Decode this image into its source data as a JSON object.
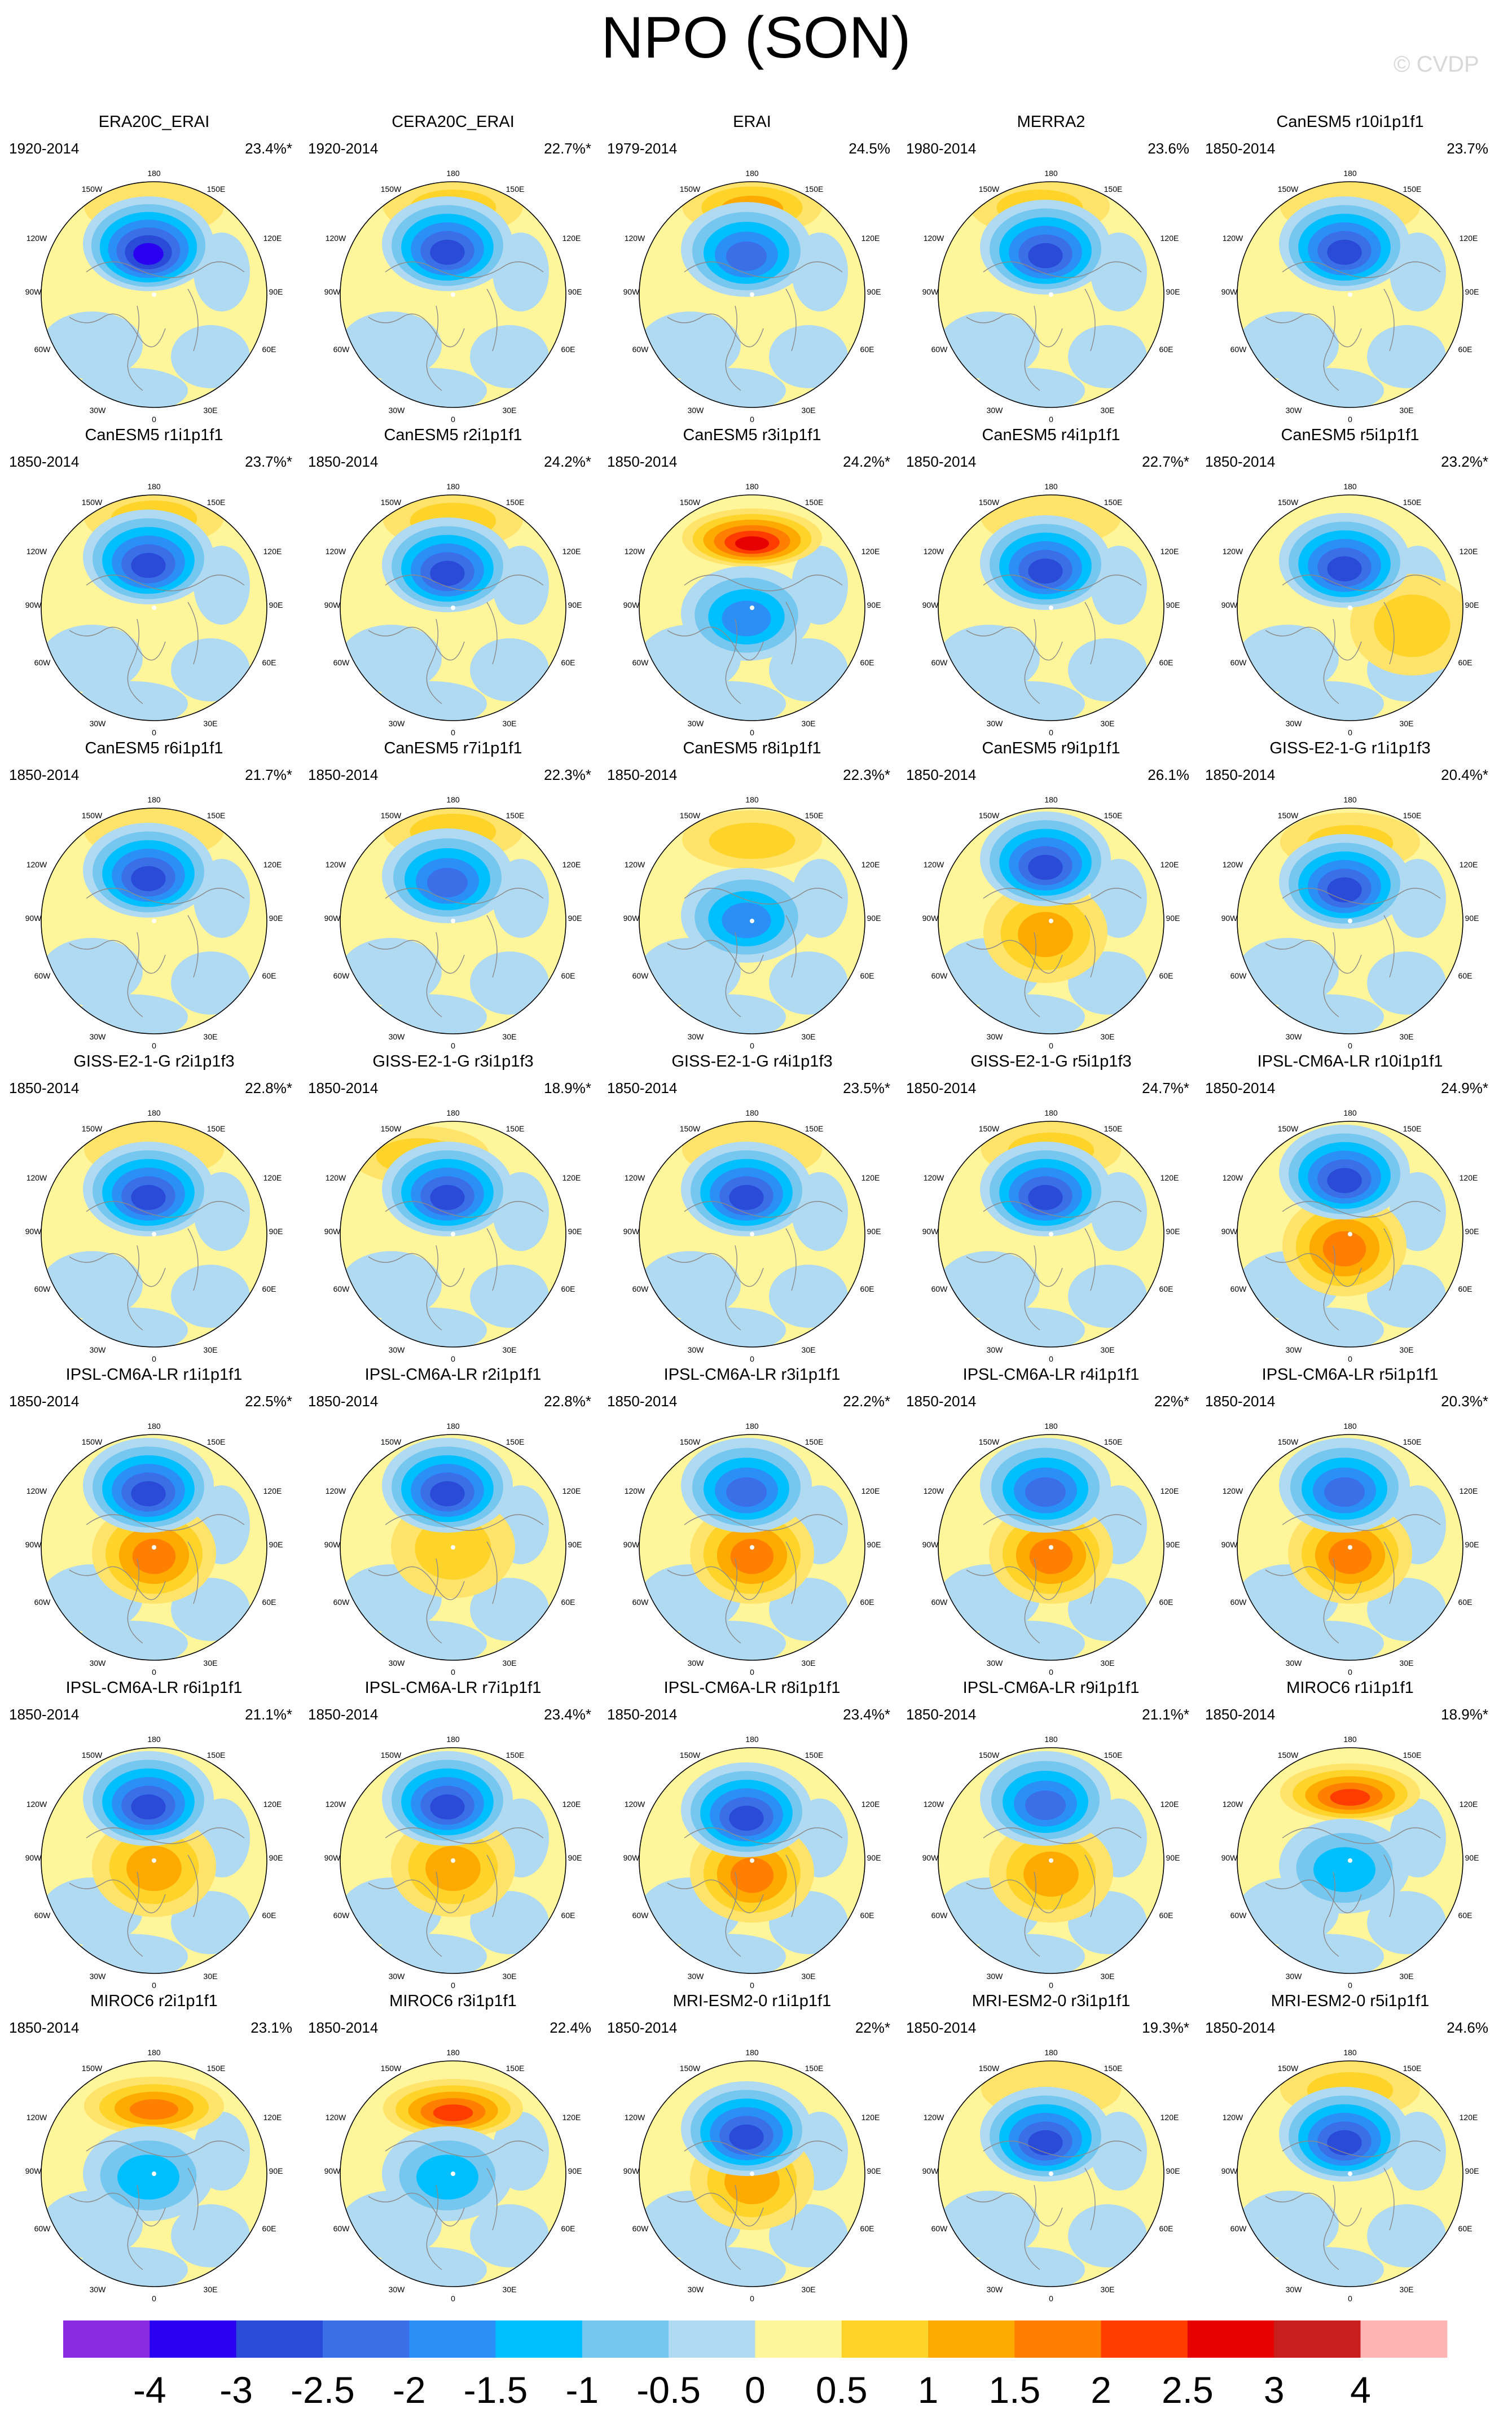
{
  "figure_title": "NPO (SON)",
  "watermark": "© CVDP",
  "map_labels": {
    "lon_top": "180",
    "lon_150w": "150W",
    "lon_150e": "150E",
    "lon_120w": "120W",
    "lon_120e": "120E",
    "lon_90w": "90W",
    "lon_90e": "90E",
    "lon_60w": "60W",
    "lon_60e": "60E",
    "lon_30w": "30W",
    "lon_30e": "30E",
    "lon_bottom": "0"
  },
  "chart_data": {
    "type": "polar-contour-panels",
    "title": "NPO (SON)",
    "projection": "north polar stereographic",
    "colorbar": {
      "levels": [
        "-4",
        "-3",
        "-2.5",
        "-2",
        "-1.5",
        "-1",
        "-0.5",
        "0",
        "0.5",
        "1",
        "1.5",
        "2",
        "2.5",
        "3",
        "4"
      ],
      "colors": [
        "#8a2be2",
        "#2a00f0",
        "#2a4bd8",
        "#3a6fe8",
        "#2b8ff8",
        "#00bfff",
        "#75c7ef",
        "#b0daf2",
        "#fff59a",
        "#ffd42a",
        "#ffaa00",
        "#ff8000",
        "#ff3c00",
        "#e60000",
        "#c81e1e",
        "#ffb4b4"
      ]
    },
    "panels": [
      {
        "name": "ERA20C_ERAI",
        "years": "1920-2014",
        "pct": "23.4%*",
        "neg": 3.4,
        "pos": 0.4,
        "negY": -0.45,
        "posY": -0.78,
        "posX": 0.0
      },
      {
        "name": "CERA20C_ERAI",
        "years": "1920-2014",
        "pct": "22.7%*",
        "neg": 2.8,
        "pos": 0.8,
        "negY": -0.45,
        "posY": -0.78,
        "posX": 0.0
      },
      {
        "name": "ERAI",
        "years": "1979-2014",
        "pct": "24.5%",
        "neg": 2.6,
        "pos": 1.3,
        "negY": -0.4,
        "posY": -0.78,
        "posX": 0.0
      },
      {
        "name": "MERRA2",
        "years": "1980-2014",
        "pct": "23.6%",
        "neg": 2.8,
        "pos": 1.0,
        "negY": -0.42,
        "posY": -0.78,
        "posX": -0.1
      },
      {
        "name": "CanESM5 r10i1p1f1",
        "years": "1850-2014",
        "pct": "23.7%",
        "neg": 2.9,
        "pos": 0.3,
        "negY": -0.45,
        "posY": -0.78,
        "posX": 0.0
      },
      {
        "name": "CanESM5 r1i1p1f1",
        "years": "1850-2014",
        "pct": "23.7%*",
        "neg": 3.1,
        "pos": 0.9,
        "negY": -0.45,
        "posY": -0.8,
        "posX": 0.0
      },
      {
        "name": "CanESM5 r2i1p1f1",
        "years": "1850-2014",
        "pct": "24.2%*",
        "neg": 2.8,
        "pos": 0.9,
        "negY": -0.38,
        "posY": -0.78,
        "posX": 0.0
      },
      {
        "name": "CanESM5 r3i1p1f1",
        "years": "1850-2014",
        "pct": "24.2%*",
        "neg": 1.8,
        "pos": 2.8,
        "negY": 0.05,
        "posY": -0.62,
        "posX": 0.0
      },
      {
        "name": "CanESM5 r4i1p1f1",
        "years": "1850-2014",
        "pct": "22.7%*",
        "neg": 2.9,
        "pos": 0.6,
        "negY": -0.4,
        "posY": -0.8,
        "posX": 0.0
      },
      {
        "name": "CanESM5 r5i1p1f1",
        "years": "1850-2014",
        "pct": "23.2%*",
        "neg": 2.9,
        "pos": 0.9,
        "negY": -0.42,
        "posY": 0.15,
        "posX": 0.55
      },
      {
        "name": "CanESM5 r6i1p1f1",
        "years": "1850-2014",
        "pct": "21.7%*",
        "neg": 2.8,
        "pos": 0.6,
        "negY": -0.45,
        "posY": -0.8,
        "posX": 0.0
      },
      {
        "name": "CanESM5 r7i1p1f1",
        "years": "1850-2014",
        "pct": "22.3%*",
        "neg": 2.6,
        "pos": 0.8,
        "negY": -0.4,
        "posY": -0.8,
        "posX": 0.0
      },
      {
        "name": "CanESM5 r8i1p1f1",
        "years": "1850-2014",
        "pct": "22.3%*",
        "neg": 2.2,
        "pos": 1.2,
        "negY": -0.05,
        "posY": -0.72,
        "posX": 0.0
      },
      {
        "name": "CanESM5 r9i1p1f1",
        "years": "1850-2014",
        "pct": "26.1%",
        "neg": 3.1,
        "pos": 1.6,
        "negY": -0.55,
        "posY": 0.1,
        "posX": -0.05
      },
      {
        "name": "GISS-E2-1-G r1i1p1f3",
        "years": "1850-2014",
        "pct": "20.4%*",
        "neg": 2.8,
        "pos": 0.9,
        "negY": -0.35,
        "posY": -0.7,
        "posX": 0.0
      },
      {
        "name": "GISS-E2-1-G r2i1p1f3",
        "years": "1850-2014",
        "pct": "22.8%*",
        "neg": 3.1,
        "pos": 0.6,
        "negY": -0.4,
        "posY": -0.75,
        "posX": 0.0
      },
      {
        "name": "GISS-E2-1-G r3i1p1f3",
        "years": "1850-2014",
        "pct": "18.9%*",
        "neg": 2.8,
        "pos": 0.9,
        "negY": -0.4,
        "posY": -0.7,
        "posX": -0.3
      },
      {
        "name": "GISS-E2-1-G r4i1p1f3",
        "years": "1850-2014",
        "pct": "23.5%*",
        "neg": 2.9,
        "pos": 0.6,
        "negY": -0.4,
        "posY": -0.75,
        "posX": 0.0
      },
      {
        "name": "GISS-E2-1-G r5i1p1f3",
        "years": "1850-2014",
        "pct": "24.7%*",
        "neg": 2.8,
        "pos": 0.9,
        "negY": -0.4,
        "posY": -0.75,
        "posX": 0.0
      },
      {
        "name": "IPSL-CM6A-LR r10i1p1f1",
        "years": "1850-2014",
        "pct": "24.9%*",
        "neg": 3.1,
        "pos": 2.2,
        "negY": -0.55,
        "posY": 0.1,
        "posX": -0.05
      },
      {
        "name": "IPSL-CM6A-LR r1i1p1f1",
        "years": "1850-2014",
        "pct": "22.5%*",
        "neg": 2.8,
        "pos": 2.2,
        "negY": -0.55,
        "posY": 0.05,
        "posX": 0.0
      },
      {
        "name": "IPSL-CM6A-LR r2i1p1f1",
        "years": "1850-2014",
        "pct": "22.8%*",
        "neg": 2.8,
        "pos": 1.0,
        "negY": -0.55,
        "posY": 0.0,
        "posX": 0.0
      },
      {
        "name": "IPSL-CM6A-LR r3i1p1f1",
        "years": "1850-2014",
        "pct": "22.2%*",
        "neg": 2.6,
        "pos": 2.2,
        "negY": -0.55,
        "posY": 0.05,
        "posX": 0.0
      },
      {
        "name": "IPSL-CM6A-LR r4i1p1f1",
        "years": "1850-2014",
        "pct": "22%*",
        "neg": 2.3,
        "pos": 2.2,
        "negY": -0.55,
        "posY": 0.05,
        "posX": 0.0
      },
      {
        "name": "IPSL-CM6A-LR r5i1p1f1",
        "years": "1850-2014",
        "pct": "20.3%*",
        "neg": 2.6,
        "pos": 2.2,
        "negY": -0.55,
        "posY": 0.05,
        "posX": 0.0
      },
      {
        "name": "IPSL-CM6A-LR r6i1p1f1",
        "years": "1850-2014",
        "pct": "21.1%*",
        "neg": 2.8,
        "pos": 1.4,
        "negY": -0.55,
        "posY": 0.05,
        "posX": 0.0
      },
      {
        "name": "IPSL-CM6A-LR r7i1p1f1",
        "years": "1850-2014",
        "pct": "23.4%*",
        "neg": 2.8,
        "pos": 1.4,
        "negY": -0.55,
        "posY": 0.05,
        "posX": 0.0
      },
      {
        "name": "IPSL-CM6A-LR r8i1p1f1",
        "years": "1850-2014",
        "pct": "23.4%*",
        "neg": 2.8,
        "pos": 2.2,
        "negY": -0.45,
        "posY": 0.1,
        "posX": 0.0
      },
      {
        "name": "IPSL-CM6A-LR r9i1p1f1",
        "years": "1850-2014",
        "pct": "21.1%*",
        "neg": 2.6,
        "pos": 1.4,
        "negY": -0.55,
        "posY": 0.1,
        "posX": 0.0
      },
      {
        "name": "MIROC6 r1i1p1f1",
        "years": "1850-2014",
        "pct": "18.9%*",
        "neg": 1.6,
        "pos": 2.3,
        "negY": 0.05,
        "posY": -0.6,
        "posX": 0.0
      },
      {
        "name": "MIROC6 r2i1p1f1",
        "years": "1850-2014",
        "pct": "23.1%",
        "neg": 1.5,
        "pos": 2.2,
        "negY": 0.0,
        "posY": -0.6,
        "posX": 0.0
      },
      {
        "name": "MIROC6 r3i1p1f1",
        "years": "1850-2014",
        "pct": "22.4%",
        "neg": 1.5,
        "pos": 2.5,
        "negY": 0.0,
        "posY": -0.58,
        "posX": 0.0
      },
      {
        "name": "MRI-ESM2-0 r1i1p1f1",
        "years": "1850-2014",
        "pct": "22%*",
        "neg": 2.8,
        "pos": 1.6,
        "negY": -0.4,
        "posY": 0.05,
        "posX": 0.0
      },
      {
        "name": "MRI-ESM2-0 r3i1p1f1",
        "years": "1850-2014",
        "pct": "19.3%*",
        "neg": 3.1,
        "pos": 0.6,
        "negY": -0.35,
        "posY": -0.75,
        "posX": 0.0
      },
      {
        "name": "MRI-ESM2-0 r5i1p1f1",
        "years": "1850-2014",
        "pct": "24.6%",
        "neg": 3.1,
        "pos": 0.9,
        "negY": -0.35,
        "posY": -0.75,
        "posX": 0.0
      }
    ]
  }
}
